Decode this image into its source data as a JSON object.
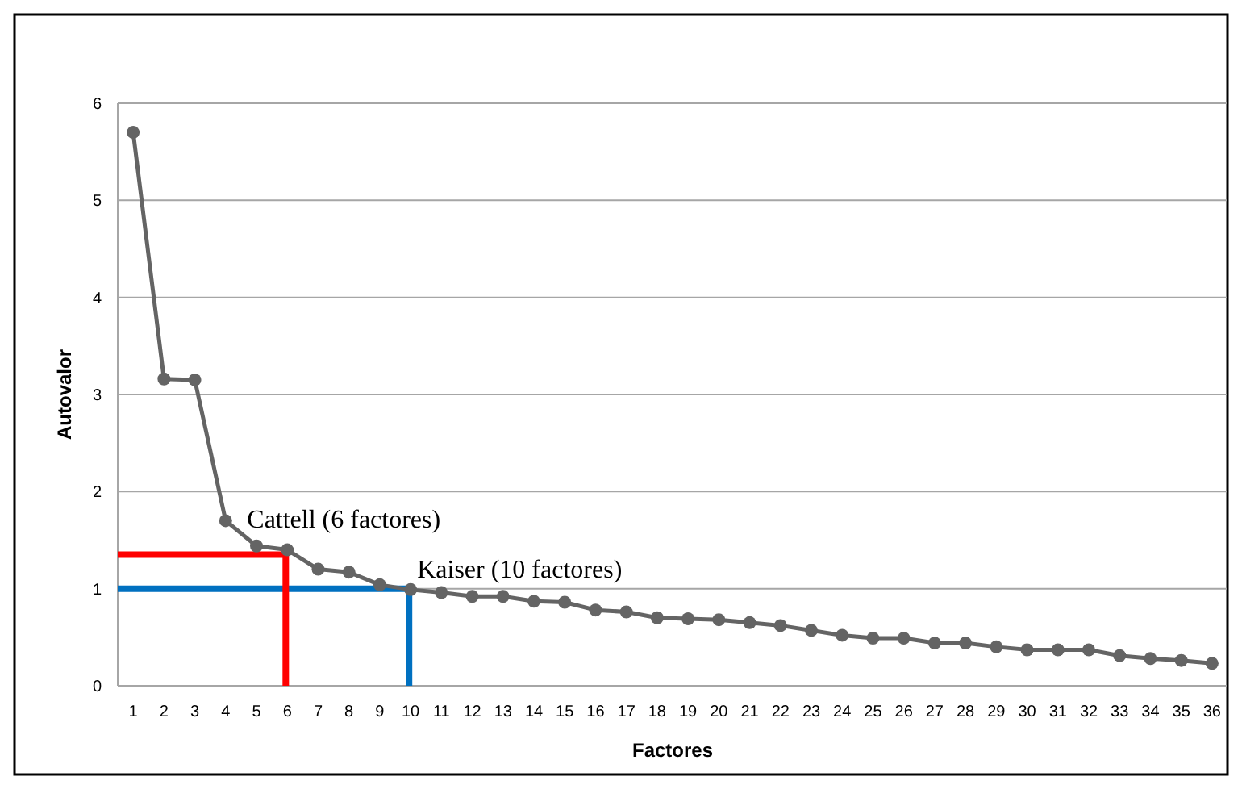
{
  "chart_data": {
    "type": "line",
    "xlabel": "Factores",
    "ylabel": "Autovalor",
    "xlim": [
      0.5,
      36.5
    ],
    "xticks": [
      1,
      2,
      3,
      4,
      5,
      6,
      7,
      8,
      9,
      10,
      11,
      12,
      13,
      14,
      15,
      16,
      17,
      18,
      19,
      20,
      21,
      22,
      23,
      24,
      25,
      26,
      27,
      28,
      29,
      30,
      31,
      32,
      33,
      34,
      35,
      36
    ],
    "ylim": [
      0,
      6
    ],
    "yticks": [
      0,
      1,
      2,
      3,
      4,
      5,
      6
    ],
    "grid": "y",
    "series": [
      {
        "color": "#646464",
        "marker": "circle",
        "x": [
          1,
          2,
          3,
          4,
          5,
          6,
          7,
          8,
          9,
          10,
          11,
          12,
          13,
          14,
          15,
          16,
          17,
          18,
          19,
          20,
          21,
          22,
          23,
          24,
          25,
          26,
          27,
          28,
          29,
          30,
          31,
          32,
          33,
          34,
          35,
          36
        ],
        "values": [
          5.7,
          3.16,
          3.15,
          1.7,
          1.44,
          1.4,
          1.2,
          1.17,
          1.04,
          0.99,
          0.96,
          0.92,
          0.92,
          0.87,
          0.86,
          0.78,
          0.76,
          0.7,
          0.69,
          0.68,
          0.65,
          0.62,
          0.57,
          0.52,
          0.49,
          0.49,
          0.44,
          0.44,
          0.4,
          0.37,
          0.37,
          0.37,
          0.31,
          0.28,
          0.26,
          0.23
        ]
      },
      {
        "color": "#ff0000",
        "marker": "none",
        "x": [
          0.5,
          5.95,
          5.95
        ],
        "values": [
          1.35,
          1.35,
          0
        ]
      },
      {
        "color": "#0070c0",
        "marker": "none",
        "x": [
          0.5,
          9.95,
          9.95
        ],
        "values": [
          1,
          1,
          0
        ]
      }
    ],
    "annotations": [
      "Cattell (6 factores)",
      "Kaiser (10 factores)"
    ]
  }
}
